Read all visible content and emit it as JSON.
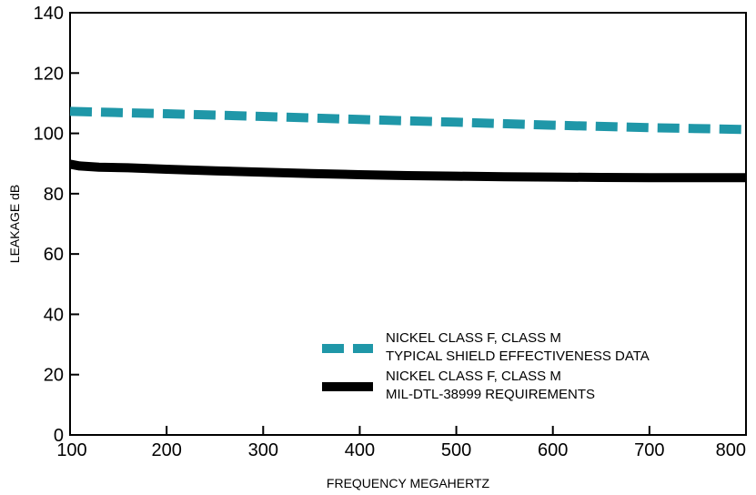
{
  "chart_data": {
    "type": "line",
    "title": "",
    "xlabel": "FREQUENCY MEGAHERTZ",
    "ylabel": "LEAKAGE dB",
    "xlim": [
      100,
      800
    ],
    "ylim": [
      0,
      140
    ],
    "xticks": [
      100,
      200,
      300,
      400,
      500,
      600,
      700,
      800
    ],
    "yticks": [
      0,
      20,
      40,
      60,
      80,
      100,
      120,
      140
    ],
    "grid": false,
    "legend_position": "bottom-right",
    "series": [
      {
        "name_lines": [
          "NICKEL CLASS F, CLASS M",
          "TYPICAL SHIELD EFFECTIVENESS DATA"
        ],
        "color": "#1f97a8",
        "style": "dashed",
        "x": [
          100,
          200,
          300,
          400,
          500,
          600,
          700,
          800
        ],
        "y": [
          107.3,
          106.5,
          105.6,
          104.6,
          103.7,
          102.7,
          101.9,
          101.3
        ]
      },
      {
        "name_lines": [
          "NICKEL CLASS F, CLASS M",
          "MIL-DTL-38999 REQUIREMENTS"
        ],
        "color": "#000000",
        "style": "solid",
        "x": [
          100,
          110,
          130,
          160,
          200,
          250,
          300,
          350,
          400,
          450,
          500,
          550,
          600,
          650,
          700,
          750,
          800
        ],
        "y": [
          89.8,
          89.2,
          88.8,
          88.6,
          88.1,
          87.6,
          87.1,
          86.7,
          86.3,
          86.0,
          85.8,
          85.6,
          85.5,
          85.4,
          85.3,
          85.3,
          85.3
        ]
      }
    ]
  }
}
